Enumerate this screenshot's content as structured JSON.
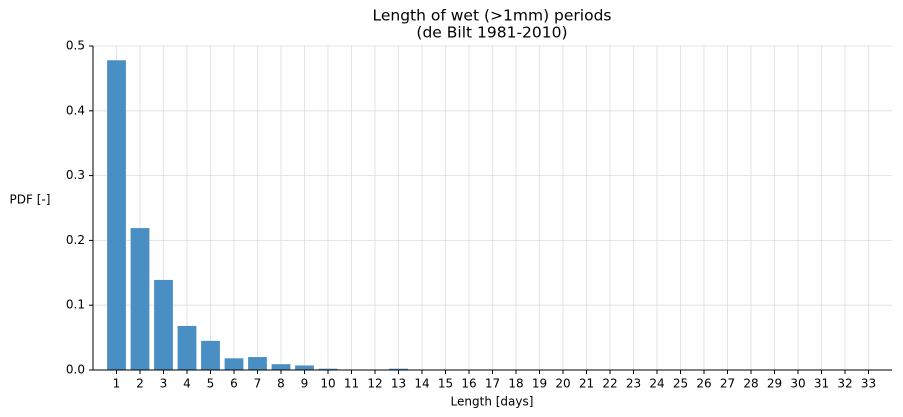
{
  "chart_data": {
    "type": "bar",
    "title": [
      "Length of wet (>1mm) periods",
      "(de Bilt 1981-2010)"
    ],
    "xlabel": "Length [days]",
    "ylabel": "PDF [-]",
    "x": [
      1,
      2,
      3,
      4,
      5,
      6,
      7,
      8,
      9,
      10,
      11,
      12,
      13,
      14,
      15,
      16,
      17,
      18,
      19,
      20,
      21,
      22,
      23,
      24,
      25,
      26,
      27,
      28,
      29,
      30,
      31,
      32,
      33
    ],
    "values": [
      0.478,
      0.219,
      0.139,
      0.068,
      0.045,
      0.018,
      0.02,
      0.009,
      0.007,
      0.002,
      0.0005,
      0,
      0.002,
      0,
      0,
      0,
      0,
      0,
      0,
      0,
      0,
      0,
      0,
      0,
      0,
      0,
      0,
      0,
      0,
      0,
      0,
      0,
      0
    ],
    "color": "#4a8fc4",
    "xlim": [
      0,
      34
    ],
    "xticks": [
      1,
      2,
      3,
      4,
      5,
      6,
      7,
      8,
      9,
      10,
      11,
      12,
      13,
      14,
      15,
      16,
      17,
      18,
      19,
      20,
      21,
      22,
      23,
      24,
      25,
      26,
      27,
      28,
      29,
      30,
      31,
      32,
      33
    ],
    "ylim": [
      0,
      0.5
    ],
    "yticks": [
      {
        "value": 0,
        "label": "0.0"
      },
      0.1,
      0.2,
      0.3,
      0.4,
      0.5
    ],
    "grid": true
  }
}
